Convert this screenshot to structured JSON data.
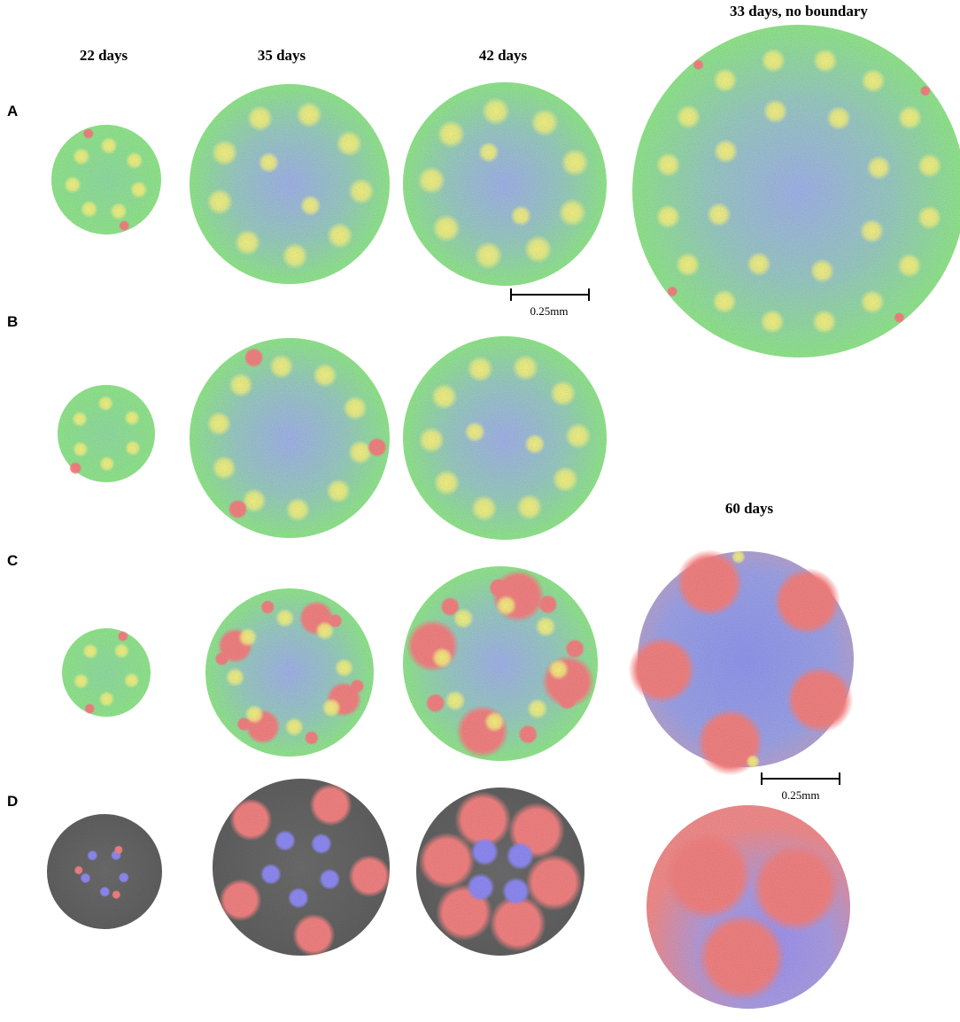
{
  "column_headers": [
    "22 days",
    "35 days",
    "42 days",
    "33 days, no boundary"
  ],
  "extra_header": "60 days",
  "row_labels": [
    "A",
    "B",
    "C",
    "D"
  ],
  "scale_bars": [
    "0.25mm",
    "0.25mm"
  ]
}
